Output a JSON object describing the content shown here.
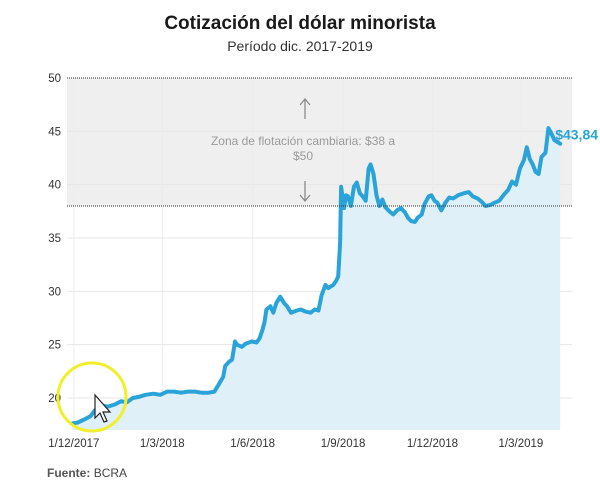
{
  "header": {
    "title": "Cotización del dólar minorista",
    "subtitle": "Período dic. 2017-2019"
  },
  "footer": {
    "source_label": "Fuente:",
    "source_value": "BCRA"
  },
  "colors": {
    "line": "#2aa3d8",
    "area": "#dff0f8",
    "band": "#efefef",
    "highlight_circle": "#f2ef2a"
  },
  "chart_data": {
    "type": "area",
    "title": "Cotización del dólar minorista",
    "subtitle": "Período dic. 2017-2019",
    "xlabel": "",
    "ylabel": "",
    "ylim": [
      17,
      50
    ],
    "xlim": [
      "2017-11-24",
      "2019-04-22"
    ],
    "y_ticks": [
      20,
      25,
      30,
      35,
      40,
      45,
      50
    ],
    "x_ticks": [
      {
        "date": "2017-12-01",
        "label": "1/12/2017"
      },
      {
        "date": "2018-03-01",
        "label": "1/3/2018"
      },
      {
        "date": "2018-06-01",
        "label": "1/6/2018"
      },
      {
        "date": "2018-09-01",
        "label": "1/9/2018"
      },
      {
        "date": "2018-12-01",
        "label": "1/12/2018"
      },
      {
        "date": "2019-03-01",
        "label": "1/3/2019"
      }
    ],
    "grid": true,
    "band": {
      "from": 38,
      "to": 50,
      "label": "Zona de flotación cambiaria: $38 a $50"
    },
    "end_label": "$43,84",
    "series": [
      {
        "values": [
          [
            "2017-11-29",
            17.6
          ],
          [
            "2017-12-05",
            17.7
          ],
          [
            "2017-12-12",
            18.0
          ],
          [
            "2017-12-18",
            18.3
          ],
          [
            "2017-12-22",
            18.8
          ],
          [
            "2017-12-27",
            19.3
          ],
          [
            "2018-01-05",
            19.2
          ],
          [
            "2018-01-12",
            19.4
          ],
          [
            "2018-01-18",
            19.7
          ],
          [
            "2018-01-24",
            19.6
          ],
          [
            "2018-01-30",
            20.0
          ],
          [
            "2018-02-05",
            20.1
          ],
          [
            "2018-02-12",
            20.3
          ],
          [
            "2018-02-20",
            20.4
          ],
          [
            "2018-02-27",
            20.3
          ],
          [
            "2018-03-06",
            20.6
          ],
          [
            "2018-03-13",
            20.6
          ],
          [
            "2018-03-20",
            20.5
          ],
          [
            "2018-03-27",
            20.6
          ],
          [
            "2018-04-03",
            20.6
          ],
          [
            "2018-04-10",
            20.5
          ],
          [
            "2018-04-17",
            20.5
          ],
          [
            "2018-04-23",
            20.6
          ],
          [
            "2018-04-27",
            21.2
          ],
          [
            "2018-05-02",
            22.0
          ],
          [
            "2018-05-04",
            23.0
          ],
          [
            "2018-05-08",
            23.4
          ],
          [
            "2018-05-11",
            23.6
          ],
          [
            "2018-05-14",
            25.3
          ],
          [
            "2018-05-16",
            25.0
          ],
          [
            "2018-05-21",
            24.8
          ],
          [
            "2018-05-25",
            25.1
          ],
          [
            "2018-05-31",
            25.3
          ],
          [
            "2018-06-05",
            25.2
          ],
          [
            "2018-06-08",
            25.6
          ],
          [
            "2018-06-11",
            26.4
          ],
          [
            "2018-06-13",
            27.1
          ],
          [
            "2018-06-15",
            28.3
          ],
          [
            "2018-06-19",
            28.6
          ],
          [
            "2018-06-22",
            28.0
          ],
          [
            "2018-06-25",
            28.9
          ],
          [
            "2018-06-29",
            29.5
          ],
          [
            "2018-07-03",
            28.9
          ],
          [
            "2018-07-06",
            28.6
          ],
          [
            "2018-07-10",
            28.0
          ],
          [
            "2018-07-16",
            28.2
          ],
          [
            "2018-07-20",
            28.3
          ],
          [
            "2018-07-25",
            28.1
          ],
          [
            "2018-07-30",
            28.0
          ],
          [
            "2018-08-03",
            28.3
          ],
          [
            "2018-08-07",
            28.2
          ],
          [
            "2018-08-10",
            29.6
          ],
          [
            "2018-08-14",
            30.6
          ],
          [
            "2018-08-17",
            30.3
          ],
          [
            "2018-08-22",
            30.6
          ],
          [
            "2018-08-25",
            31.0
          ],
          [
            "2018-08-27",
            31.4
          ],
          [
            "2018-08-29",
            34.5
          ],
          [
            "2018-08-30",
            39.8
          ],
          [
            "2018-09-02",
            37.8
          ],
          [
            "2018-09-04",
            39.0
          ],
          [
            "2018-09-06",
            38.9
          ],
          [
            "2018-09-09",
            38.0
          ],
          [
            "2018-09-12",
            39.8
          ],
          [
            "2018-09-15",
            40.2
          ],
          [
            "2018-09-18",
            39.2
          ],
          [
            "2018-09-21",
            38.9
          ],
          [
            "2018-09-24",
            38.5
          ],
          [
            "2018-09-27",
            41.5
          ],
          [
            "2018-09-29",
            41.9
          ],
          [
            "2018-10-02",
            41.0
          ],
          [
            "2018-10-05",
            39.0
          ],
          [
            "2018-10-08",
            38.0
          ],
          [
            "2018-10-11",
            38.6
          ],
          [
            "2018-10-14",
            37.9
          ],
          [
            "2018-10-18",
            37.5
          ],
          [
            "2018-10-22",
            37.2
          ],
          [
            "2018-10-26",
            37.6
          ],
          [
            "2018-10-30",
            37.8
          ],
          [
            "2018-11-03",
            37.4
          ],
          [
            "2018-11-06",
            36.9
          ],
          [
            "2018-11-09",
            36.6
          ],
          [
            "2018-11-13",
            36.5
          ],
          [
            "2018-11-16",
            36.9
          ],
          [
            "2018-11-20",
            37.2
          ],
          [
            "2018-11-23",
            38.2
          ],
          [
            "2018-11-27",
            38.9
          ],
          [
            "2018-11-30",
            39.0
          ],
          [
            "2018-12-03",
            38.5
          ],
          [
            "2018-12-06",
            38.3
          ],
          [
            "2018-12-10",
            37.6
          ],
          [
            "2018-12-14",
            38.3
          ],
          [
            "2018-12-18",
            38.8
          ],
          [
            "2018-12-22",
            38.7
          ],
          [
            "2018-12-27",
            39.0
          ],
          [
            "2019-01-02",
            39.2
          ],
          [
            "2019-01-07",
            39.3
          ],
          [
            "2019-01-11",
            38.9
          ],
          [
            "2019-01-16",
            38.7
          ],
          [
            "2019-01-20",
            38.4
          ],
          [
            "2019-01-24",
            38.0
          ],
          [
            "2019-01-29",
            38.1
          ],
          [
            "2019-02-02",
            38.3
          ],
          [
            "2019-02-07",
            38.5
          ],
          [
            "2019-02-12",
            39.1
          ],
          [
            "2019-02-16",
            39.5
          ],
          [
            "2019-02-20",
            40.3
          ],
          [
            "2019-02-24",
            40.0
          ],
          [
            "2019-02-28",
            41.5
          ],
          [
            "2019-03-04",
            42.3
          ],
          [
            "2019-03-07",
            43.5
          ],
          [
            "2019-03-10",
            42.4
          ],
          [
            "2019-03-13",
            41.9
          ],
          [
            "2019-03-16",
            41.2
          ],
          [
            "2019-03-19",
            41.0
          ],
          [
            "2019-03-22",
            42.6
          ],
          [
            "2019-03-26",
            43.0
          ],
          [
            "2019-03-29",
            45.3
          ],
          [
            "2019-04-01",
            44.8
          ],
          [
            "2019-04-04",
            44.2
          ],
          [
            "2019-04-07",
            44.0
          ],
          [
            "2019-04-10",
            43.84
          ]
        ]
      }
    ]
  }
}
